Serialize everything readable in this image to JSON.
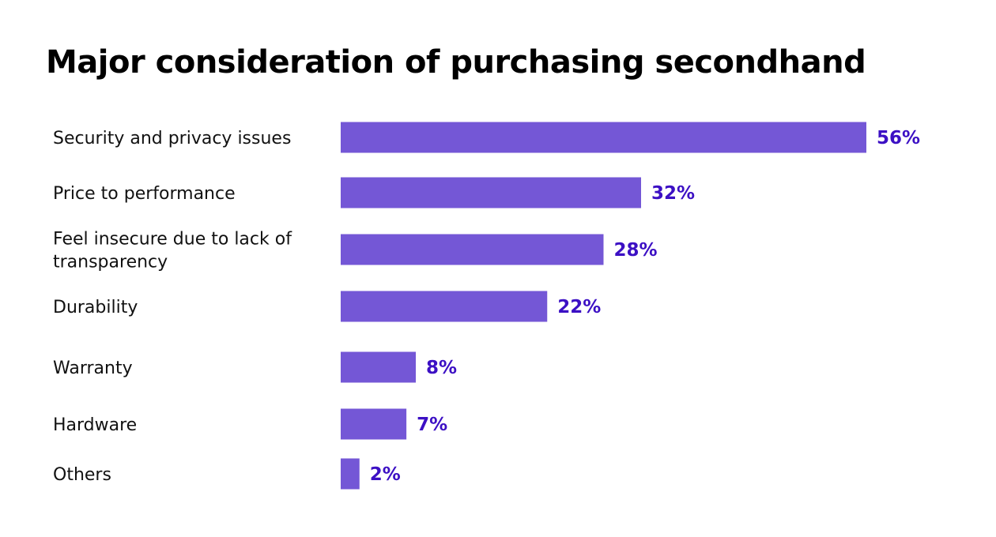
{
  "chart_data": {
    "type": "bar",
    "orientation": "horizontal",
    "title": "Major consideration of purchasing secondhand",
    "categories": [
      "Security and privacy issues",
      "Price to performance",
      "Feel insecure due to lack of transparency",
      "Durability",
      "Warranty",
      "Hardware",
      "Others"
    ],
    "category_label_lines": [
      [
        "Security and privacy issues"
      ],
      [
        "Price to performance"
      ],
      [
        "Feel insecure due to lack of",
        "transparency"
      ],
      [
        "Durability"
      ],
      [
        "Warranty"
      ],
      [
        "Hardware"
      ],
      [
        "Others"
      ]
    ],
    "values": [
      56,
      32,
      28,
      22,
      8,
      7,
      2
    ],
    "value_labels": [
      "56%",
      "32%",
      "28%",
      "22%",
      "8%",
      "7%",
      "2%"
    ],
    "unit": "%",
    "xlim": [
      0,
      56
    ],
    "grid": false,
    "legend": "none",
    "colors": {
      "bar": "#7457D6",
      "value_label": "#3C10C4",
      "title": "#000000",
      "category_label": "#111111"
    }
  }
}
